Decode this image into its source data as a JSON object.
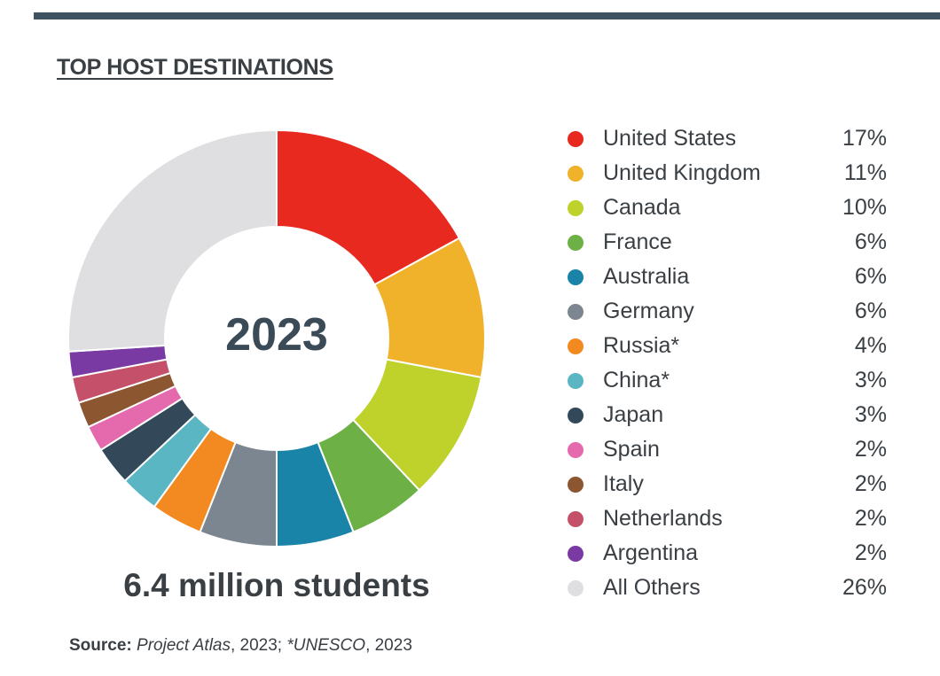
{
  "header": {
    "title": "TOP HOST DESTINATIONS"
  },
  "center_label": "2023",
  "total_label": "6.4 million students",
  "source": {
    "label": "Source:",
    "name1": "Project Atlas",
    "mid": ", 2023; ",
    "name2": "*UNESCO",
    "end": ", 2023"
  },
  "chart_data": {
    "type": "pie",
    "title": "TOP HOST DESTINATIONS",
    "categories": [
      "United States",
      "United Kingdom",
      "Canada",
      "France",
      "Australia",
      "Germany",
      "Russia*",
      "China*",
      "Japan",
      "Spain",
      "Italy",
      "Netherlands",
      "Argentina",
      "All Others"
    ],
    "values": [
      17,
      11,
      10,
      6,
      6,
      6,
      4,
      3,
      3,
      2,
      2,
      2,
      2,
      26
    ],
    "value_labels": [
      "17%",
      "11%",
      "10%",
      "6%",
      "6%",
      "6%",
      "4%",
      "3%",
      "3%",
      "2%",
      "2%",
      "2%",
      "2%",
      "26%"
    ],
    "colors": [
      "#e8291f",
      "#f0b22b",
      "#bfd22b",
      "#6db046",
      "#1a84a8",
      "#7b8690",
      "#f28a21",
      "#5bb6c4",
      "#33495a",
      "#e56aad",
      "#8c5630",
      "#c4506a",
      "#7a3aa3",
      "#dfdfe2"
    ],
    "donut": true,
    "legend_position": "right"
  }
}
